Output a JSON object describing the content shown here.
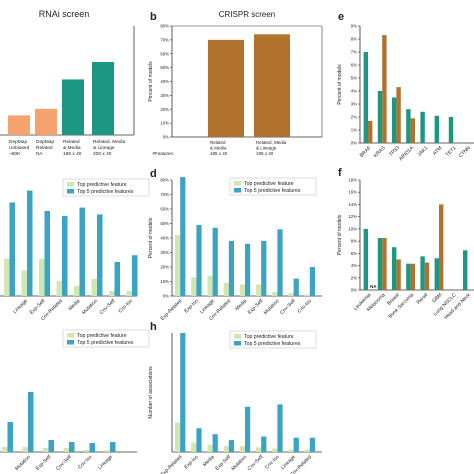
{
  "colors": {
    "salmon": "#f5a26f",
    "teal": "#1b9784",
    "brown": "#b0722c",
    "light_green": "#cfe8b3",
    "steel_blue": "#3ba3c4",
    "axis": "#333333",
    "text": "#222222"
  },
  "chart_data": [
    {
      "id": "a",
      "type": "bar",
      "title": "RNAi screen",
      "ylim": [
        0,
        1
      ],
      "categories": [
        [
          "DepMap",
          "Unbiased",
          "~60K"
        ],
        [
          "DepMap",
          "Related",
          "NA"
        ],
        [
          "Related",
          "& Media",
          "185 x 40"
        ],
        [
          "Related, Media",
          "& Lineage",
          "200 x 40"
        ]
      ],
      "values": [
        0.18,
        0.24,
        0.51,
        0.67
      ]
    },
    {
      "id": "b",
      "type": "bar",
      "panel_letter": "b",
      "title": "CRISPR screen",
      "ylabel": "Percent of models",
      "ylim": [
        0,
        80
      ],
      "yticks": [
        0,
        10,
        20,
        30,
        40,
        50,
        60,
        70,
        80
      ],
      "ytick_suffix": "%",
      "row_label": "#Features:",
      "categories": [
        [
          "Related",
          "& Media",
          "185 x 40"
        ],
        [
          "Related, Media",
          "& Lineage",
          "198 x 40"
        ]
      ],
      "values": [
        70,
        74
      ]
    },
    {
      "id": "c",
      "type": "bar",
      "legend": [
        "Top predictive feature",
        "Top 5 predictive features"
      ],
      "categories": [
        "",
        "Lineage",
        "Exp-Self",
        "Cnv-Related",
        "Media",
        "Mutation",
        "Cnv-Self",
        "Cnv-Iso"
      ],
      "series": [
        {
          "values": [
            0.22,
            0.15,
            0.22,
            0.09,
            0.06,
            0.1,
            0.03,
            0.03
          ]
        },
        {
          "values": [
            0.55,
            0.62,
            0.5,
            0.47,
            0.52,
            0.48,
            0.2,
            0.24
          ]
        }
      ]
    },
    {
      "id": "d",
      "type": "bar",
      "panel_letter": "d",
      "ylabel": "Percent of models",
      "ylim": [
        0,
        80
      ],
      "yticks": [
        0,
        10,
        20,
        30,
        40,
        50,
        60,
        70,
        80
      ],
      "ytick_suffix": "%",
      "legend": [
        "Top predictive feature",
        "Top 5 predictive features"
      ],
      "categories": [
        "Exp-Related",
        "Exp-Iso",
        "Lineage",
        "Cnv-Related",
        "Media",
        "Exp-Self",
        "Mutation",
        "Cnv-Self",
        "Cnv-Iso"
      ],
      "series": [
        {
          "values": [
            42,
            13,
            14,
            9,
            8,
            8,
            3,
            2,
            1
          ]
        },
        {
          "values": [
            82,
            49,
            47,
            38,
            36,
            38,
            46,
            12,
            20
          ]
        }
      ]
    },
    {
      "id": "e",
      "type": "bar",
      "panel_letter": "e",
      "ylabel": "Percent of models",
      "ylim": [
        0,
        9
      ],
      "yticks": [
        0,
        1,
        2,
        3,
        4,
        5,
        6,
        7,
        8,
        9
      ],
      "ytick_suffix": "%",
      "categories": [
        "BRAF",
        "KRAS",
        "TP53",
        "ARID1A",
        "JAK1",
        "ATM",
        "TET1",
        "CTNN"
      ],
      "series": [
        {
          "values": [
            7.0,
            4.0,
            3.5,
            2.6,
            2.4,
            2.1,
            2.0,
            0
          ]
        },
        {
          "values": [
            1.7,
            8.3,
            4.3,
            1.9,
            0,
            0,
            0,
            0
          ]
        }
      ]
    },
    {
      "id": "f",
      "type": "bar",
      "panel_letter": "f",
      "ylabel": "Percent of models",
      "ylim": [
        0,
        18
      ],
      "yticks": [
        0,
        2,
        4,
        6,
        8,
        10,
        12,
        14,
        16,
        18
      ],
      "ytick_suffix": "%",
      "categories": [
        "Leukemia",
        "Melanoma",
        "Breast",
        "Bone Sarcoma",
        "Renal",
        "GBM",
        "Lung NSCLC",
        "Head and Neck"
      ],
      "na_label": "NA",
      "series": [
        {
          "values": [
            10.0,
            8.5,
            7.0,
            4.3,
            5.5,
            5.2,
            0,
            6.5
          ]
        },
        {
          "values": [
            0,
            8.5,
            5.0,
            4.3,
            4.5,
            14.0,
            0,
            0
          ]
        }
      ]
    },
    {
      "id": "g",
      "type": "bar",
      "legend": [
        "Top predictive feature",
        "Top 5 predictive features"
      ],
      "categories": [
        "",
        "Mutation",
        "Exp-Self",
        "Cnv-Self",
        "Cnv-Iso",
        "Lineage"
      ],
      "series": [
        {
          "values": [
            0.05,
            0.05,
            0.04,
            0.04,
            0.02,
            0.02
          ]
        },
        {
          "values": [
            0.3,
            0.6,
            0.12,
            0.1,
            0.09,
            0.1
          ]
        }
      ]
    },
    {
      "id": "h",
      "type": "bar",
      "panel_letter": "h",
      "ylabel": "Number of associations",
      "legend": [
        "Top predictive feature",
        "Top 5 predictive features"
      ],
      "categories": [
        "Exp-Related",
        "Exp-Iso",
        "Media",
        "Exp-Self",
        "Mutation",
        "Cnv-Self",
        "Cnv-Iso",
        "Lineage",
        "Cnv-Related"
      ],
      "series": [
        {
          "values": [
            0.25,
            0.08,
            0.06,
            0.05,
            0.05,
            0.04,
            0.03,
            0.02,
            0.02
          ]
        },
        {
          "values": [
            1.0,
            0.2,
            0.15,
            0.1,
            0.38,
            0.13,
            0.4,
            0.12,
            0.12
          ]
        }
      ]
    }
  ]
}
